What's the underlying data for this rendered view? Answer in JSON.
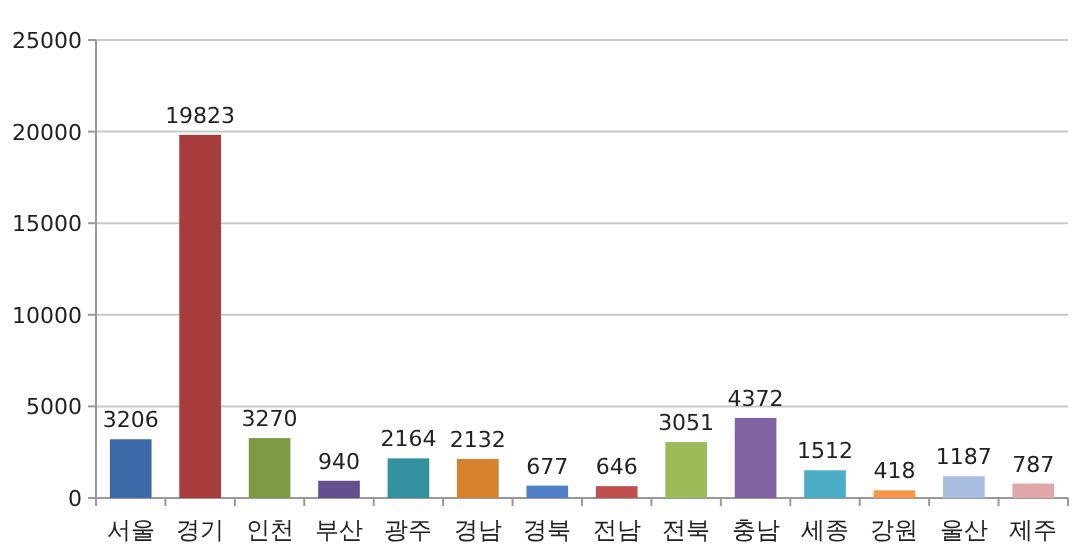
{
  "chart_data": {
    "type": "bar",
    "categories": [
      "서울",
      "경기",
      "인천",
      "부산",
      "광주",
      "경남",
      "경북",
      "전남",
      "전북",
      "충남",
      "세종",
      "강원",
      "울산",
      "제주"
    ],
    "values": [
      3206,
      19823,
      3270,
      940,
      2164,
      2132,
      677,
      646,
      3051,
      4372,
      1512,
      418,
      1187,
      787
    ],
    "colors": [
      "#3c69a8",
      "#a83c3c",
      "#7f9a44",
      "#65508f",
      "#33909e",
      "#d9822e",
      "#4f7fc6",
      "#c0504d",
      "#9bbb59",
      "#8064a2",
      "#4bacc6",
      "#f79646",
      "#a8bde0",
      "#e0a8a8"
    ],
    "ylim": [
      0,
      25000
    ],
    "yticks": [
      0,
      5000,
      10000,
      15000,
      20000,
      25000
    ],
    "grid": "y",
    "data_labels": true
  }
}
